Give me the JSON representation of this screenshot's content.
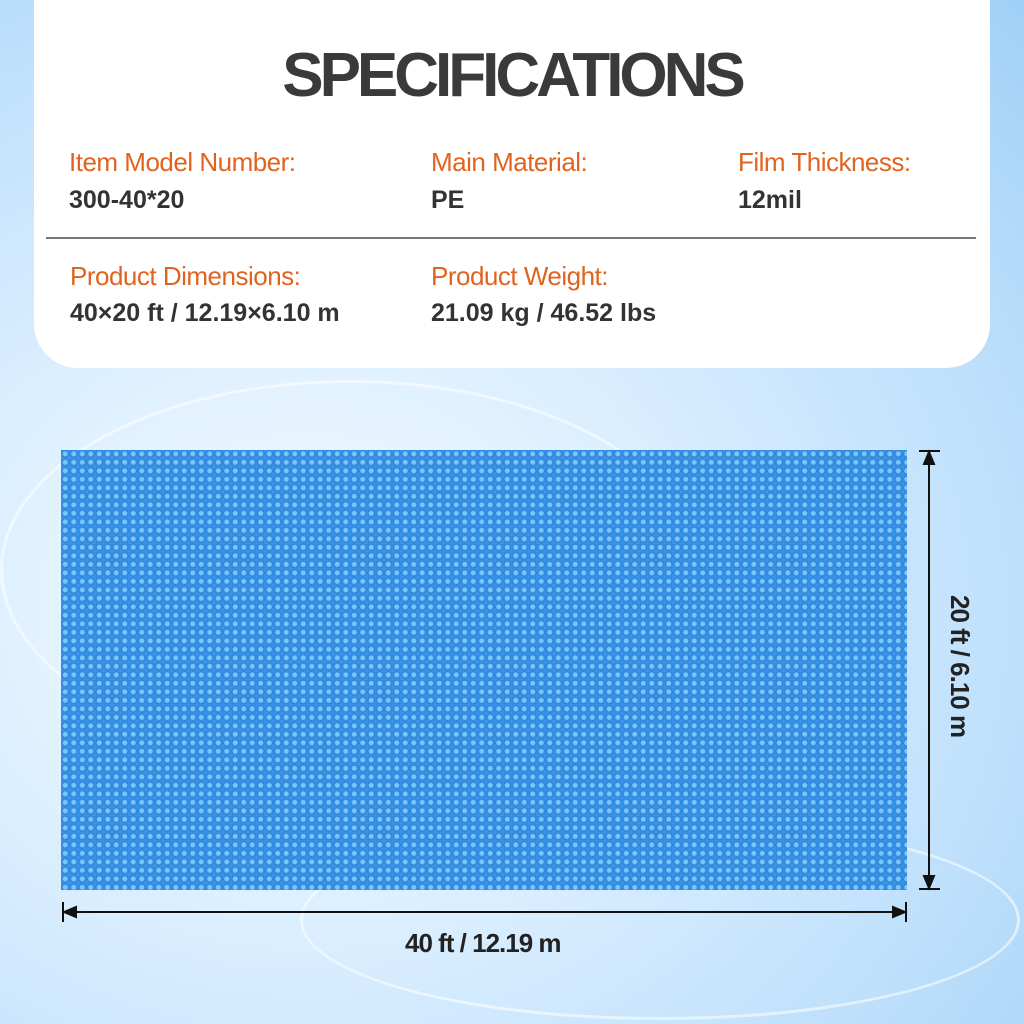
{
  "title": "SPECIFICATIONS",
  "specs": [
    {
      "label": "Item Model Number:",
      "value": "300-40*20"
    },
    {
      "label": "Main Material:",
      "value": "PE"
    },
    {
      "label": "Film Thickness:",
      "value": "12mil"
    },
    {
      "label": "Product Dimensions:",
      "value": "40×20 ft / 12.19×6.10 m"
    },
    {
      "label": "Product Weight:",
      "value": "21.09 kg / 46.52 lbs"
    }
  ],
  "dimensions": {
    "width": "40 ft / 12.19 m",
    "height": "20 ft / 6.10 m"
  },
  "colors": {
    "label": "#e0641f",
    "cover": "#3a94e6"
  }
}
